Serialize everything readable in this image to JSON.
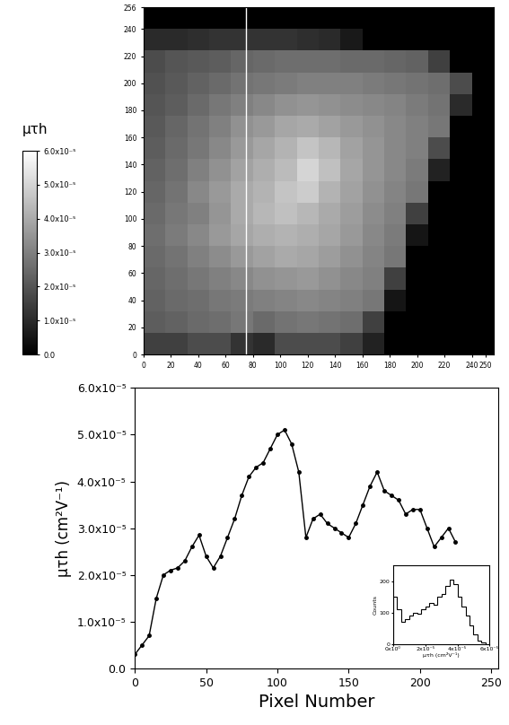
{
  "chart_data": [
    {
      "type": "heatmap",
      "x_edges": [
        0,
        16,
        32,
        48,
        64,
        80,
        96,
        112,
        128,
        144,
        160,
        176,
        192,
        208,
        224,
        240,
        256
      ],
      "y_edges": [
        0,
        16,
        32,
        48,
        64,
        80,
        96,
        112,
        128,
        144,
        160,
        176,
        192,
        208,
        224,
        240,
        256
      ],
      "cells": [
        [
          1.5e-05,
          1.5e-05,
          1.8e-05,
          1.8e-05,
          1.2e-05,
          1e-05,
          1.8e-05,
          1.8e-05,
          1.8e-05,
          1.5e-05,
          8e-06,
          0,
          0,
          0,
          0,
          0
        ],
        [
          2.2e-05,
          2.3e-05,
          2.5e-05,
          2.6e-05,
          2.8e-05,
          2.5e-05,
          2.7e-05,
          2.8e-05,
          2.7e-05,
          2.6e-05,
          1.5e-05,
          0,
          0,
          0,
          0,
          0
        ],
        [
          2.3e-05,
          2.5e-05,
          2.6e-05,
          2.8e-05,
          2.9e-05,
          3e-05,
          3.1e-05,
          3.2e-05,
          3.1e-05,
          3e-05,
          2.8e-05,
          5e-06,
          0,
          0,
          0,
          0
        ],
        [
          2.4e-05,
          2.6e-05,
          2.8e-05,
          3e-05,
          3.2e-05,
          3.4e-05,
          3.5e-05,
          3.6e-05,
          3.4e-05,
          3.2e-05,
          3e-05,
          1.5e-05,
          0,
          0,
          0,
          0
        ],
        [
          2.5e-05,
          2.7e-05,
          3e-05,
          3.3e-05,
          3.6e-05,
          3.8e-05,
          4e-05,
          3.9e-05,
          3.7e-05,
          3.4e-05,
          3.1e-05,
          2.8e-05,
          0,
          0,
          0,
          0
        ],
        [
          2.6e-05,
          2.9e-05,
          3.2e-05,
          3.6e-05,
          3.9e-05,
          4.1e-05,
          4.2e-05,
          4.1e-05,
          3.9e-05,
          3.6e-05,
          3.2e-05,
          2.9e-05,
          5e-06,
          0,
          0,
          0
        ],
        [
          2.5e-05,
          2.8e-05,
          3e-05,
          3.5e-05,
          4e-05,
          4.3e-05,
          4.5e-05,
          4.3e-05,
          4e-05,
          3.7e-05,
          3.3e-05,
          3e-05,
          1.5e-05,
          0,
          0,
          0
        ],
        [
          2.4e-05,
          2.7e-05,
          3.2e-05,
          3.6e-05,
          4e-05,
          4.2e-05,
          4.6e-05,
          4.8e-05,
          4.2e-05,
          3.8e-05,
          3.4e-05,
          3.1e-05,
          2.8e-05,
          0,
          0,
          0
        ],
        [
          2.3e-05,
          2.6e-05,
          3e-05,
          3.4e-05,
          3.8e-05,
          4.1e-05,
          4.4e-05,
          5e-05,
          4.5e-05,
          3.9e-05,
          3.5e-05,
          3.2e-05,
          2.9e-05,
          8e-06,
          0,
          0
        ],
        [
          2.2e-05,
          2.5e-05,
          2.8e-05,
          3.2e-05,
          3.6e-05,
          3.9e-05,
          4.2e-05,
          4.6e-05,
          4.3e-05,
          3.8e-05,
          3.5e-05,
          3.2e-05,
          3e-05,
          1.8e-05,
          0,
          0
        ],
        [
          2.1e-05,
          2.4e-05,
          2.7e-05,
          3e-05,
          3.4e-05,
          3.6e-05,
          3.9e-05,
          4e-05,
          3.8e-05,
          3.6e-05,
          3.4e-05,
          3.2e-05,
          3e-05,
          2.8e-05,
          0,
          0
        ],
        [
          2e-05,
          2.2e-05,
          2.5e-05,
          2.8e-05,
          3e-05,
          3.2e-05,
          3.4e-05,
          3.5e-05,
          3.4e-05,
          3.3e-05,
          3.2e-05,
          3.1e-05,
          2.9e-05,
          2.7e-05,
          1e-05,
          0
        ],
        [
          1.9e-05,
          2.1e-05,
          2.3e-05,
          2.5e-05,
          2.7e-05,
          2.8e-05,
          2.9e-05,
          3e-05,
          3e-05,
          3e-05,
          2.9e-05,
          2.8e-05,
          2.7e-05,
          2.6e-05,
          1.8e-05,
          0
        ],
        [
          1.8e-05,
          2e-05,
          2.1e-05,
          2.2e-05,
          2.4e-05,
          2.5e-05,
          2.6e-05,
          2.6e-05,
          2.6e-05,
          2.5e-05,
          2.5e-05,
          2.4e-05,
          2.3e-05,
          1.5e-05,
          0,
          0
        ],
        [
          1e-05,
          1e-05,
          1.1e-05,
          1.2e-05,
          1.2e-05,
          1.2e-05,
          1.2e-05,
          1.1e-05,
          1e-05,
          6e-06,
          0,
          0,
          0,
          0,
          0,
          0
        ],
        [
          0,
          0,
          0,
          0,
          0,
          0,
          0,
          0,
          0,
          0,
          0,
          0,
          0,
          0,
          0,
          0
        ]
      ],
      "xlim": [
        0,
        256
      ],
      "ylim": [
        0,
        256
      ],
      "xticks": [
        0,
        20,
        40,
        60,
        80,
        100,
        120,
        140,
        160,
        180,
        200,
        220,
        240,
        250
      ],
      "yticks": [
        0,
        20,
        40,
        60,
        80,
        100,
        120,
        140,
        160,
        180,
        200,
        220,
        240,
        256
      ],
      "colorbar_label": "μτh",
      "colorbar_range": [
        0,
        6e-05
      ],
      "colorbar_ticks": [
        {
          "value": 0,
          "label": "0.0"
        },
        {
          "value": 1e-05,
          "label": "1.0x10⁻⁵"
        },
        {
          "value": 2e-05,
          "label": "2.0x10⁻⁵"
        },
        {
          "value": 3e-05,
          "label": "3.0x10⁻⁵"
        },
        {
          "value": 4e-05,
          "label": "4.0x10⁻⁵"
        },
        {
          "value": 5e-05,
          "label": "5.0x10⁻⁵"
        },
        {
          "value": 6e-05,
          "label": "6.0x10⁻⁵"
        }
      ],
      "profile_x": 75
    },
    {
      "type": "line",
      "x": [
        0,
        5,
        10,
        15,
        20,
        25,
        30,
        35,
        40,
        45,
        50,
        55,
        60,
        65,
        70,
        75,
        80,
        85,
        90,
        95,
        100,
        105,
        110,
        115,
        120,
        125,
        130,
        135,
        140,
        145,
        150,
        155,
        160,
        165,
        170,
        175,
        180,
        185,
        190,
        195,
        200,
        205,
        210,
        215,
        220,
        225
      ],
      "values": [
        3e-06,
        5e-06,
        7e-06,
        1.5e-05,
        2e-05,
        2.1e-05,
        2.15e-05,
        2.3e-05,
        2.6e-05,
        2.85e-05,
        2.4e-05,
        2.15e-05,
        2.4e-05,
        2.8e-05,
        3.2e-05,
        3.7e-05,
        4.1e-05,
        4.3e-05,
        4.4e-05,
        4.7e-05,
        5e-05,
        5.1e-05,
        4.8e-05,
        4.2e-05,
        2.8e-05,
        3.2e-05,
        3.3e-05,
        3.1e-05,
        3e-05,
        2.9e-05,
        2.8e-05,
        3.1e-05,
        3.5e-05,
        3.9e-05,
        4.2e-05,
        3.8e-05,
        3.7e-05,
        3.6e-05,
        3.3e-05,
        3.4e-05,
        3.4e-05,
        3e-05,
        2.6e-05,
        2.8e-05,
        3e-05,
        2.7e-05
      ],
      "xlabel": "Pixel Number",
      "ylabel": "μτh (cm²V⁻¹)",
      "xlim": [
        0,
        255
      ],
      "ylim": [
        0,
        6e-05
      ],
      "xticks": [
        0,
        50,
        100,
        150,
        200,
        250
      ],
      "yticks": [
        {
          "value": 0,
          "label": "0.0"
        },
        {
          "value": 1e-05,
          "label": "1.0x10⁻⁵"
        },
        {
          "value": 2e-05,
          "label": "2.0x10⁻⁵"
        },
        {
          "value": 3e-05,
          "label": "3.0x10⁻⁵"
        },
        {
          "value": 4e-05,
          "label": "4.0x10⁻⁵"
        },
        {
          "value": 5e-05,
          "label": "5.0x10⁻⁵"
        },
        {
          "value": 6e-05,
          "label": "6.0x10⁻⁵"
        }
      ],
      "color": "#000000",
      "marker": "circle",
      "line_style": "solid"
    },
    {
      "type": "histogram",
      "bins": [
        0,
        2.5e-06,
        5e-06,
        7.5e-06,
        1e-05,
        1.25e-05,
        1.5e-05,
        1.75e-05,
        2e-05,
        2.25e-05,
        2.5e-05,
        2.75e-05,
        3e-05,
        3.25e-05,
        3.5e-05,
        3.75e-05,
        4e-05,
        4.25e-05,
        4.5e-05,
        4.75e-05,
        5e-05,
        5.25e-05,
        5.5e-05,
        5.75e-05,
        6e-05
      ],
      "counts": [
        150,
        110,
        70,
        80,
        90,
        100,
        95,
        110,
        120,
        130,
        125,
        150,
        160,
        185,
        205,
        190,
        150,
        120,
        90,
        60,
        30,
        10,
        3,
        0
      ],
      "xlabel": "μτh (cm²V⁻¹)",
      "ylabel": "Counts",
      "xlim": [
        0,
        6e-05
      ],
      "ylim": [
        0,
        250
      ],
      "xticks": [
        {
          "value": 0,
          "label": "0x10⁰"
        },
        {
          "value": 2e-05,
          "label": "2x10⁻⁵"
        },
        {
          "value": 4e-05,
          "label": "4x10⁻⁵"
        },
        {
          "value": 6e-05,
          "label": "6x10⁻⁵"
        }
      ],
      "yticks": [
        0,
        100,
        200
      ],
      "color": "#000000"
    }
  ]
}
